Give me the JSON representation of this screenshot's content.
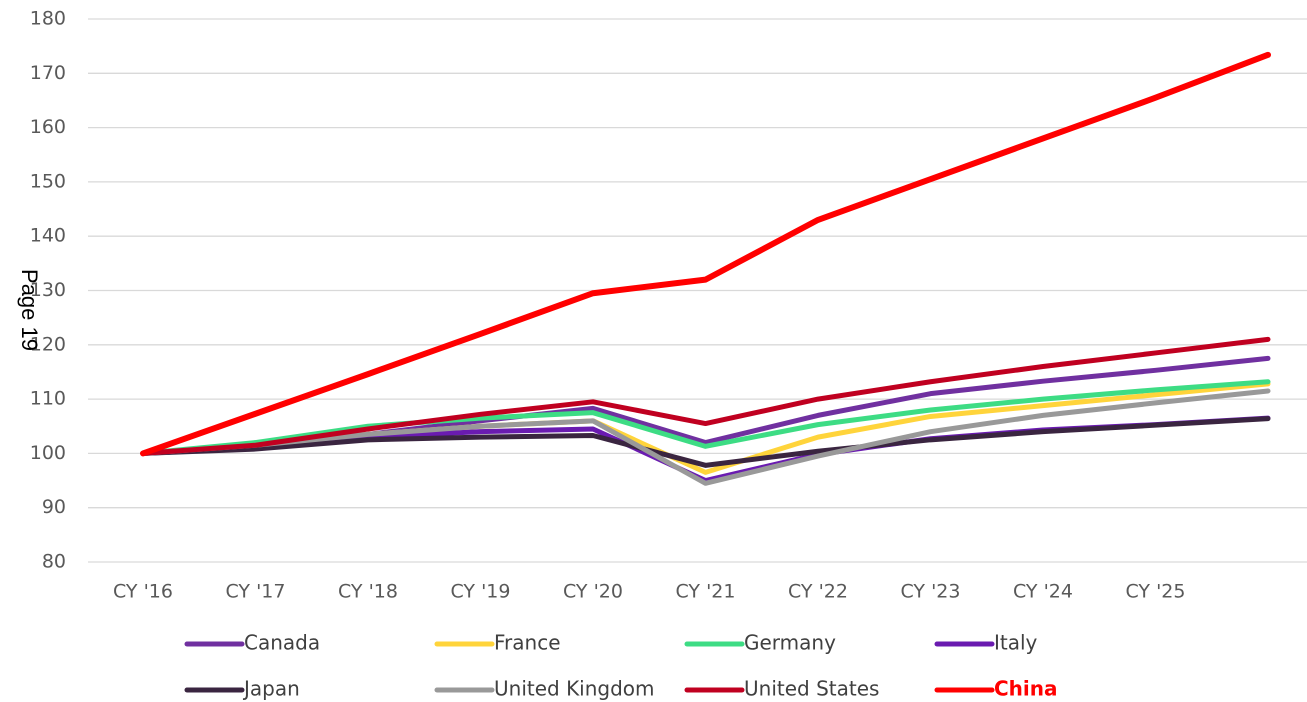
{
  "page_label": "Page 19",
  "chart_data": {
    "type": "line",
    "categories": [
      "CY '16",
      "CY '17",
      "CY '18",
      "CY '19",
      "CY '20",
      "CY '21",
      "CY '22",
      "CY '23",
      "CY '24",
      "CY '25",
      null
    ],
    "ylim": [
      80,
      180
    ],
    "yticks": [
      80,
      90,
      100,
      110,
      120,
      130,
      140,
      150,
      160,
      170,
      180
    ],
    "grid": true,
    "legend": "bottom",
    "series": [
      {
        "name": "Canada",
        "color": "#7030a0",
        "values": [
          100,
          101.5,
          103.5,
          106,
          108.3,
          102,
          107,
          111,
          113.3,
          115.3,
          117.5
        ]
      },
      {
        "name": "France",
        "color": "#ffd43b",
        "values": [
          100,
          101.5,
          103.5,
          105,
          106,
          96.5,
          103,
          106.8,
          108.8,
          110.8,
          112.8
        ]
      },
      {
        "name": "Germany",
        "color": "#3ddc84",
        "values": [
          100,
          102,
          105,
          106.5,
          107.5,
          101.3,
          105.3,
          108,
          110,
          111.7,
          113.2
        ]
      },
      {
        "name": "Italy",
        "color": "#6a1bb0",
        "values": [
          100,
          101,
          103,
          104,
          104.5,
          95,
          99.8,
          102.7,
          104.3,
          105.3,
          106.5
        ]
      },
      {
        "name": "Japan",
        "color": "#3a2540",
        "values": [
          100,
          100.8,
          102.5,
          103,
          103.3,
          97.8,
          100.4,
          102.5,
          104,
          105.2,
          106.4
        ]
      },
      {
        "name": "United Kingdom",
        "color": "#999999",
        "values": [
          100,
          101.5,
          103.5,
          105,
          106,
          94.5,
          99.5,
          104,
          107,
          109.3,
          111.5
        ]
      },
      {
        "name": "United States",
        "color": "#c00020",
        "values": [
          100,
          101.5,
          104.5,
          107.2,
          109.5,
          105.5,
          110,
          113.2,
          116,
          118.5,
          121
        ]
      },
      {
        "name": "China",
        "color": "#ff0000",
        "values": [
          100,
          107.3,
          114.6,
          122,
          129.5,
          132,
          143,
          150.5,
          158,
          165.5,
          173.4
        ]
      }
    ]
  }
}
